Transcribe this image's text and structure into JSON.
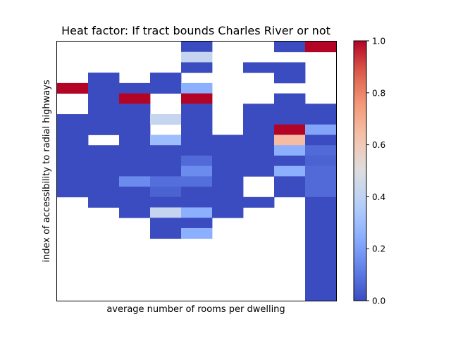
{
  "chart_data": {
    "type": "heatmap",
    "title": "Heat factor: If tract bounds Charles River or not",
    "xlabel": "average number of rooms per dwelling",
    "ylabel": "index of accessibility to radial highways",
    "colorbar": {
      "min": 0.0,
      "max": 1.0,
      "ticks": [
        "0.0",
        "0.2",
        "0.4",
        "0.6",
        "0.8",
        "1.0"
      ],
      "colormap": "coolwarm"
    },
    "n_cols": 9,
    "n_rows": 25,
    "grid": [
      [
        null,
        null,
        null,
        null,
        0.0,
        null,
        null,
        0.0,
        1.0
      ],
      [
        null,
        null,
        null,
        null,
        0.42,
        null,
        null,
        null,
        null
      ],
      [
        null,
        null,
        null,
        null,
        0.0,
        null,
        0.0,
        0.0,
        null
      ],
      [
        null,
        0.0,
        null,
        0.0,
        null,
        null,
        null,
        0.0,
        null
      ],
      [
        1.0,
        0.0,
        0.0,
        0.0,
        0.25,
        null,
        null,
        null,
        null
      ],
      [
        null,
        0.0,
        1.0,
        null,
        1.0,
        null,
        null,
        0.0,
        null
      ],
      [
        null,
        0.0,
        0.0,
        null,
        0.0,
        null,
        0.0,
        0.0,
        0.0
      ],
      [
        0.0,
        0.0,
        0.0,
        0.42,
        0.0,
        null,
        0.0,
        0.0,
        0.0
      ],
      [
        0.0,
        0.0,
        0.0,
        null,
        0.0,
        null,
        0.0,
        1.0,
        0.22
      ],
      [
        0.0,
        null,
        0.0,
        0.3,
        0.0,
        0.0,
        0.0,
        0.65,
        0.0
      ],
      [
        0.0,
        0.0,
        0.0,
        0.0,
        0.0,
        0.0,
        0.0,
        0.25,
        0.07
      ],
      [
        0.0,
        0.0,
        0.0,
        0.0,
        0.07,
        0.0,
        0.0,
        0.0,
        0.05
      ],
      [
        0.0,
        0.0,
        0.0,
        0.0,
        0.15,
        0.0,
        0.0,
        0.25,
        0.07
      ],
      [
        0.0,
        0.0,
        0.15,
        0.08,
        0.08,
        0.0,
        null,
        0.0,
        0.07
      ],
      [
        0.0,
        0.0,
        0.0,
        0.05,
        0.0,
        0.0,
        null,
        0.0,
        0.07
      ],
      [
        null,
        0.0,
        0.0,
        0.0,
        0.0,
        0.0,
        0.0,
        null,
        0.0
      ],
      [
        null,
        null,
        0.0,
        0.42,
        0.25,
        0.0,
        null,
        null,
        0.0
      ],
      [
        null,
        null,
        null,
        0.0,
        0.0,
        null,
        null,
        null,
        0.0
      ],
      [
        null,
        null,
        null,
        0.0,
        0.25,
        null,
        null,
        null,
        0.0
      ],
      [
        null,
        null,
        null,
        null,
        null,
        null,
        null,
        null,
        0.0
      ],
      [
        null,
        null,
        null,
        null,
        null,
        null,
        null,
        null,
        0.0
      ],
      [
        null,
        null,
        null,
        null,
        null,
        null,
        null,
        null,
        0.0
      ],
      [
        null,
        null,
        null,
        null,
        null,
        null,
        null,
        null,
        0.0
      ],
      [
        null,
        null,
        null,
        null,
        null,
        null,
        null,
        null,
        0.0
      ],
      [
        null,
        null,
        null,
        null,
        null,
        null,
        null,
        null,
        0.0
      ]
    ]
  }
}
